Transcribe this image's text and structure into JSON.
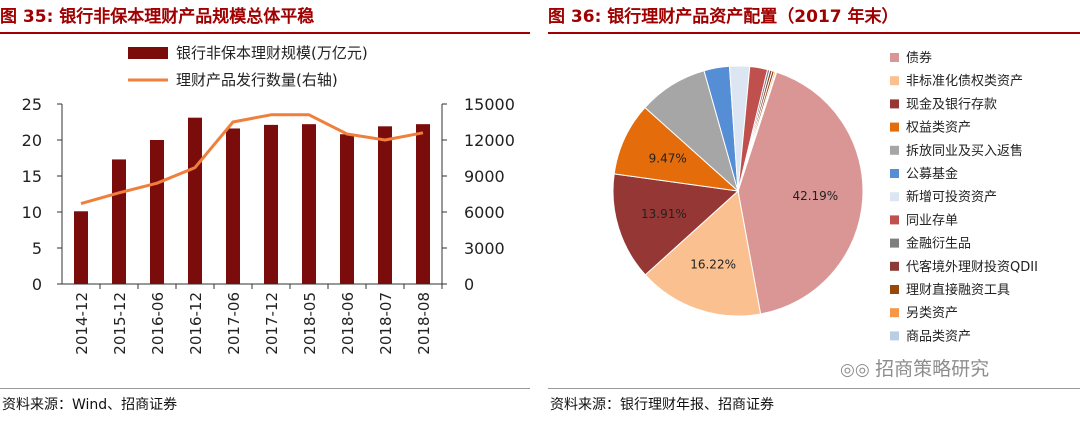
{
  "left": {
    "title": "图 35:  银行非保本理财产品规模总体平稳",
    "source": "资料来源：Wind、招商证券"
  },
  "right": {
    "title": "图 36:  银行理财产品资产配置（2017 年末）",
    "source": "资料来源：银行理财年报、招商证券",
    "watermark": "招商策略研究"
  },
  "chart_data": [
    {
      "type": "bar",
      "categories": [
        "2014-12",
        "2015-12",
        "2016-06",
        "2016-12",
        "2017-06",
        "2017-12",
        "2018-05",
        "2018-06",
        "2018-07",
        "2018-08"
      ],
      "series": [
        {
          "name": "银行非保本理财规模(万亿元)",
          "type": "bar",
          "axis": "left",
          "color": "#7b0c0c",
          "values": [
            10.1,
            17.3,
            20.0,
            23.1,
            21.6,
            22.1,
            22.2,
            20.8,
            21.9,
            22.2
          ]
        },
        {
          "name": "理财产品发行数量(右轴)",
          "type": "line",
          "axis": "right",
          "color": "#ef7f3a",
          "values": [
            6700,
            7600,
            8400,
            9700,
            13500,
            14100,
            14100,
            12500,
            12000,
            12600
          ]
        }
      ],
      "y_left": {
        "min": 0,
        "max": 25,
        "ticks": [
          0,
          5,
          10,
          15,
          20,
          25
        ]
      },
      "y_right": {
        "min": 0,
        "max": 15000,
        "ticks": [
          "0",
          "3000",
          "6000",
          "9000",
          "12000",
          "15000"
        ]
      },
      "legend_position": "top",
      "grid": false
    },
    {
      "type": "pie",
      "start_angle_deg": -72,
      "slices": [
        {
          "label": "债券",
          "value": 42.19,
          "color": "#d99694",
          "show_label": "42.19%"
        },
        {
          "label": "非标准化债权类资产",
          "value": 16.22,
          "color": "#fac090",
          "show_label": "16.22%"
        },
        {
          "label": "现金及银行存款",
          "value": 13.91,
          "color": "#953735",
          "show_label": "13.91%"
        },
        {
          "label": "权益类资产",
          "value": 9.47,
          "color": "#e46c0a",
          "show_label": "9.47%"
        },
        {
          "label": "拆放同业及买入返售",
          "value": 9.0,
          "color": "#a6a6a6",
          "show_label": ""
        },
        {
          "label": "公募基金",
          "value": 3.3,
          "color": "#558ed5",
          "show_label": ""
        },
        {
          "label": "新增可投资资产",
          "value": 2.6,
          "color": "#dce6f2",
          "show_label": ""
        },
        {
          "label": "同业存单",
          "value": 2.3,
          "color": "#c0504d",
          "show_label": ""
        },
        {
          "label": "金融衍生品",
          "value": 0.3,
          "color": "#7f7f7f",
          "show_label": ""
        },
        {
          "label": "代客境外理财投资QDII",
          "value": 0.3,
          "color": "#8b3a3a",
          "show_label": ""
        },
        {
          "label": "理财直接融资工具",
          "value": 0.3,
          "color": "#984807",
          "show_label": ""
        },
        {
          "label": "另类资产",
          "value": 0.2,
          "color": "#f79646",
          "show_label": ""
        },
        {
          "label": "商品类资产",
          "value": 0.1,
          "color": "#b9cde5",
          "show_label": ""
        }
      ],
      "legend_position": "right"
    }
  ]
}
